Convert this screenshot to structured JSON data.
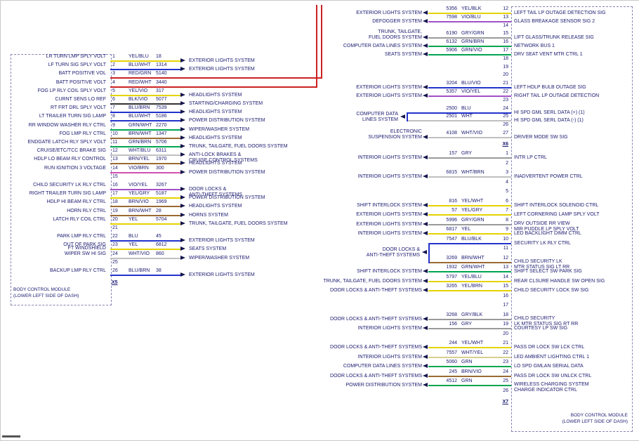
{
  "left_module": {
    "title_lines": [
      "BODY CONTROL MODULE",
      "(LOWER LEFT SIDE OF DASH)"
    ],
    "connector": "X5",
    "rows": [
      {
        "pin": "1",
        "label": [
          "LR TURN LMP SPLY VOLT"
        ],
        "code": "YEL/BLU",
        "circuit": "18",
        "dest": [
          "EXTERIOR LIGHTS SYSTEM"
        ],
        "wire": "#e4d300"
      },
      {
        "pin": "2",
        "label": [
          "LF TURN SIG SPLY VOLT"
        ],
        "code": "BLU/WHT",
        "circuit": "1314",
        "dest": [
          "EXTERIOR LIGHTS SYSTEM"
        ],
        "wire": "#2233cc"
      },
      {
        "pin": "3",
        "label": [
          "BATT POSITIVE VOL"
        ],
        "code": "RED/GRN",
        "circuit": "5140",
        "wire": "#cc2222",
        "route": "up"
      },
      {
        "pin": "4",
        "label": [
          "BATT POSITIVE VOLT"
        ],
        "code": "RED/WHT",
        "circuit": "3440",
        "wire": "#cc2222",
        "route": "up"
      },
      {
        "pin": "5",
        "label": [
          "FOG LP RLY COIL SPLY VOLT"
        ],
        "code": "YEL/VIO",
        "circuit": "317",
        "dest": [
          "HEADLIGHTS SYSTEM"
        ],
        "wire": "#e4d300"
      },
      {
        "pin": "6",
        "label": [
          "CURNT SENS LO REF"
        ],
        "code": "BLK/VIO",
        "circuit": "5077",
        "dest": [
          "STARTING/CHARGING SYSTEM"
        ],
        "wire": "#333333"
      },
      {
        "pin": "7",
        "label": [
          "RT FRT DRL SPLY VOLT"
        ],
        "code": "BLU/BRN",
        "circuit": "7539",
        "dest": [
          "HEADLIGHTS SYSTEM"
        ],
        "wire": "#2233cc"
      },
      {
        "pin": "8",
        "label": [
          "LT TRAILER TURN SIG LAMP"
        ],
        "code": "BLU/WHT",
        "circuit": "5186",
        "dest": [
          "POWER DISTRIBUTION SYSTEM"
        ],
        "wire": "#2233cc"
      },
      {
        "pin": "9",
        "label": [
          "RR WINDOW WASHER RLY CTRL"
        ],
        "code": "GRN/WHT",
        "circuit": "2270",
        "dest": [
          "WIPER/WASHER SYSTEM"
        ],
        "wire": "#00a550"
      },
      {
        "pin": "10",
        "label": [
          "FOG LMP RLY CTRL"
        ],
        "code": "BRN/WHT",
        "circuit": "1347",
        "dest": [
          "HEADLIGHTS SYSTEM"
        ],
        "wire": "#9a6a32"
      },
      {
        "pin": "11",
        "label": [
          "ENDGATE LATCH RLY SPLY VOLT"
        ],
        "code": "GRN/BRN",
        "circuit": "5706",
        "dest": [
          "TRUNK, TAILGATE, FUEL DOORS SYSTEM"
        ],
        "wire": "#00a550"
      },
      {
        "pin": "12",
        "label": [
          "CRUISE/ETC/TCC BRAKE SIG"
        ],
        "code": "WHT/BLU",
        "circuit": "6311",
        "dest": [
          "ANTI-LOCK BRAKES &",
          "CRUISE CONTROL SYSTEMS"
        ],
        "wire": "#c0c0c0"
      },
      {
        "pin": "13",
        "label": [
          "HDLP LO BEAM RLY CONTROL"
        ],
        "code": "BRN/YEL",
        "circuit": "1970",
        "dest": [
          "HEADLIGHTS SYSTEM"
        ],
        "wire": "#9a6a32"
      },
      {
        "pin": "14",
        "label": [
          "RUN IGNITION 3 VOLTAGE"
        ],
        "code": "VIO/BRN",
        "circuit": "300",
        "dest": [
          "POWER DISTRIBUTION SYSTEM"
        ],
        "wire": "#d24fb0"
      },
      {
        "pin": "15"
      },
      {
        "pin": "16",
        "label": [
          "CHILD SECURITY LK RLY CTRL"
        ],
        "code": "VIO/YEL",
        "circuit": "3267",
        "dest": [
          "DOOR LOCKS &",
          "ANTI-THEFT SYSTEMS"
        ],
        "wire": "#a44fc8"
      },
      {
        "pin": "17",
        "label": [
          "RIGHT TRAILER TURN SIG LAMP"
        ],
        "code": "YEL/GRY",
        "circuit": "5187",
        "dest": [
          "POWER DISTRIBUTION SYSTEM"
        ],
        "wire": "#e4d300"
      },
      {
        "pin": "18",
        "label": [
          "HDLP HI BEAM RLY CTRL"
        ],
        "code": "BRN/VIO",
        "circuit": "1969",
        "dest": [
          "HEADLIGHTS SYSTEM"
        ],
        "wire": "#9a6a32"
      },
      {
        "pin": "19",
        "label": [
          "HORN RLY CTRL"
        ],
        "code": "BRN/WHT",
        "circuit": "28",
        "dest": [
          "HORNS SYSTEM"
        ],
        "wire": "#9a6a32"
      },
      {
        "pin": "20",
        "label": [
          "LATCH RLY COIL CTRL"
        ],
        "code": "YEL",
        "circuit": "5704",
        "dest": [
          "TRUNK, TAILGATE, FUEL DOORS SYSTEM"
        ],
        "wire": "#e4d300"
      },
      {
        "pin": "21"
      },
      {
        "pin": "22",
        "label": [
          "PARK LMP RLY CTRL"
        ],
        "code": "BLU",
        "circuit": "45",
        "dest": [
          "EXTERIOR LIGHTS SYSTEM"
        ],
        "wire": "#2233cc"
      },
      {
        "pin": "23",
        "label": [
          "OUT OF PARK SIG"
        ],
        "code": "YEL",
        "circuit": "6812",
        "dest": [
          "SEATS SYSTEM"
        ],
        "wire": "#e4d300"
      },
      {
        "pin": "24",
        "label": [
          "FT WINDSHIELD",
          "WIPER SW HI SIG"
        ],
        "code": "WHT/VIO",
        "circuit": "860",
        "dest": [
          "WIPER/WASHER SYSTEM"
        ],
        "wire": "#c0c0c0"
      },
      {
        "pin": "25"
      },
      {
        "pin": "26",
        "label": [
          "BACKUP LMP RLY CTRL"
        ],
        "code": "BLU/BRN",
        "circuit": "38",
        "dest": [
          "EXTERIOR LIGHTS SYSTEM"
        ],
        "wire": "#2233cc"
      }
    ]
  },
  "right_module": {
    "title_lines": [
      "BODY CONTROL MODULE",
      "(LOWER LEFT SIDE OF DASH)"
    ],
    "groups": [
      {
        "connector": "X6",
        "rows": [
          {
            "pin": "12",
            "system": [
              "EXTERIOR LIGHTS SYSTEM"
            ],
            "circuit": "5356",
            "code": "YEL/BLK",
            "label": [
              "LEFT TAIL LP OUTAGE DETECTION SIG"
            ],
            "wire": "#e4d300"
          },
          {
            "pin": "13",
            "system": [
              "DEFOGGER SYSTEM"
            ],
            "circuit": "7598",
            "code": "VIO/BLU",
            "label": [
              "GLASS BREAKAGE SENSOR SIG 2"
            ],
            "wire": "#a44fc8"
          },
          {
            "pin": "14"
          },
          {
            "pin": "15",
            "system": [
              "TRUNK, TAILGATE,",
              "FUEL DOORS SYSTEM"
            ],
            "circuit": "6190",
            "code": "GRY/GRN",
            "label": [
              "LIFT GLASS/TRUNK RELEASE SIG"
            ],
            "wire": "#9a9a9a"
          },
          {
            "pin": "16",
            "system": [
              "COMPUTER DATA LINES SYSTEM"
            ],
            "circuit": "6132",
            "code": "GRN/BRN",
            "label": [
              "NETWORK BUS 1"
            ],
            "wire": "#00a550"
          },
          {
            "pin": "17",
            "system": [
              "SEATS SYSTEM"
            ],
            "circuit": "5906",
            "code": "GRN/VIO",
            "label": [
              "DRV SEAT VENT MTR CTRL 1"
            ],
            "wire": "#00a550"
          },
          {
            "pin": "18"
          },
          {
            "pin": "19"
          },
          {
            "pin": "20"
          },
          {
            "pin": "21",
            "system": [
              "EXTERIOR LIGHTS SYSTEM"
            ],
            "circuit": "3204",
            "code": "BLU/VIO",
            "label": [
              "LEFT HDLP BULB OUTAGE SIG"
            ],
            "wire": "#2233cc"
          },
          {
            "pin": "22",
            "system": [
              "EXTERIOR LIGHTS SYSTEM"
            ],
            "circuit": "5357",
            "code": "VIO/YEL",
            "label": [
              "RIGHT TAIL LP OUTAGE DETECTION"
            ],
            "wire": "#a44fc8"
          },
          {
            "pin": "23"
          },
          {
            "pin": "24",
            "circuit": "2500",
            "code": "BLU",
            "label": [
              "HI SPD GML SERL DATA (+) (1)"
            ],
            "wire": "#2233cc",
            "bracket": 0
          },
          {
            "pin": "25",
            "circuit": "2501",
            "code": "WHT",
            "label": [
              "HI SPD GML SERL DATA (-) (1)"
            ],
            "wire": "#c0c0c0",
            "bracket": 0
          },
          {
            "pin": "26"
          },
          {
            "pin": "27",
            "system": [
              "ELECTRONIC",
              "SUSPENSION SYSTEM"
            ],
            "circuit": "4108",
            "code": "WHT/VIO",
            "label": [
              "DRIVER MODE SW SIG"
            ],
            "wire": "#c0c0c0"
          }
        ]
      },
      {
        "connector": "X7",
        "rows": [
          {
            "pin": "1",
            "system": [
              "INTERIOR LIGHTS SYSTEM"
            ],
            "circuit": "157",
            "code": "GRY",
            "label": [
              "INTR LP CTRL"
            ],
            "wire": "#9a9a9a"
          },
          {
            "pin": "2"
          },
          {
            "pin": "3",
            "system": [
              "INTERIOR LIGHTS SYSTEM"
            ],
            "circuit": "6815",
            "code": "WHT/BRN",
            "label": [
              "INADVERTENT POWER CTRL"
            ],
            "wire": "#c0c0c0"
          },
          {
            "pin": "4"
          },
          {
            "pin": "5"
          },
          {
            "pin": "6",
            "system": [
              "SHIFT INTERLOCK SYSTEM"
            ],
            "circuit": "816",
            "code": "YEL/WHT",
            "label": [
              "SHIFT INTERLOCK SOLENOID CTRL"
            ],
            "wire": "#e4d300"
          },
          {
            "pin": "7",
            "system": [
              "EXTERIOR LIGHTS SYSTEM"
            ],
            "circuit": "57",
            "code": "YEL/GRY",
            "label": [
              "LEFT CORNERING LAMP SPLY VOLT"
            ],
            "wire": "#e4d300"
          },
          {
            "pin": "8",
            "system": [
              "EXTERIOR LIGHTS SYSTEM"
            ],
            "circuit": "5996",
            "code": "GRY/GRN",
            "label": [
              "DRV OUTSIDE RR VIEW",
              "MIR PUDDLE LP SPLY VOLT"
            ],
            "wire": "#9a9a9a"
          },
          {
            "pin": "9",
            "system": [
              "INTERIOR LIGHTS SYSTEM"
            ],
            "circuit": "6817",
            "code": "YEL",
            "label": [
              "LED BACKLIGHT DIMM CTRL"
            ],
            "wire": "#e4d300"
          },
          {
            "pin": "10",
            "circuit": "7547",
            "code": "BLU/BLK",
            "label": [
              "SECURITY LK RLY CTRL"
            ],
            "wire": "#2233cc",
            "bracket": 1
          },
          {
            "pin": "11"
          },
          {
            "pin": "12",
            "circuit": "3269",
            "code": "BRN/WHT",
            "label": [
              "CHILD SECURITY LK",
              "MTR STATUS SIG LT RR"
            ],
            "wire": "#9a6a32",
            "bracket": 1
          },
          {
            "pin": "13",
            "system": [
              "SHIFT INTERLOCK SYSTEM"
            ],
            "circuit": "1932",
            "code": "GRN/WHT",
            "label": [
              "SHIFT SELECT SW PARK SIG"
            ],
            "wire": "#00a550"
          },
          {
            "pin": "14",
            "system": [
              "TRUNK, TAILGATE, FUEL DOORS SYSTEM"
            ],
            "circuit": "5797",
            "code": "YEL/BLU",
            "label": [
              "REAR CLSURE HANDLE SW OPEN SIG"
            ],
            "wire": "#e4d300"
          },
          {
            "pin": "15",
            "system": [
              "DOOR LOCKS & ANTI-THEFT SYSTEMS"
            ],
            "circuit": "3265",
            "code": "YEL/BRN",
            "label": [
              "CHILD SECURITY LOCK SW SIG"
            ],
            "wire": "#e4d300"
          },
          {
            "pin": "16"
          },
          {
            "pin": "17"
          },
          {
            "pin": "18",
            "system": [
              "DOOR LOCKS & ANTI-THEFT SYSTEMS"
            ],
            "circuit": "3268",
            "code": "GRY/BLK",
            "label": [
              "CHILD SECURITY",
              "LK MTR STATUS SIG RT RR"
            ],
            "wire": "#9a9a9a"
          },
          {
            "pin": "19",
            "system": [
              "INTERIOR LIGHTS SYSTEM"
            ],
            "circuit": "156",
            "code": "GRY",
            "label": [
              "COURTESY LP SW SIG"
            ],
            "wire": "#9a9a9a"
          },
          {
            "pin": "20"
          },
          {
            "pin": "21",
            "system": [
              "DOOR LOCKS & ANTI-THEFT SYSTEMS"
            ],
            "circuit": "244",
            "code": "YEL/WHT",
            "label": [
              "PASS DR LOCK SW LCK CTRL"
            ],
            "wire": "#e4d300"
          },
          {
            "pin": "22",
            "system": [
              "INTERIOR LIGHTS SYSTEM"
            ],
            "circuit": "7557",
            "code": "WHT/YEL",
            "label": [
              "LED AMBIENT LIGHTING CTRL 1"
            ],
            "wire": "#d6cf8e"
          },
          {
            "pin": "23",
            "system": [
              "COMPUTER DATA LINES SYSTEM"
            ],
            "circuit": "5060",
            "code": "GRN",
            "label": [
              "LO SPD GMLAN SERIAL DATA"
            ],
            "wire": "#00a550"
          },
          {
            "pin": "24",
            "system": [
              "DOOR LOCKS & ANTI-THEFT SYSTEMS"
            ],
            "circuit": "245",
            "code": "BRN/VIO",
            "label": [
              "PASS DR LOCK SW UNLCK CTRL"
            ],
            "wire": "#9a6a32"
          },
          {
            "pin": "25",
            "system": [
              "POWER DISTRIBUTION SYSTEM"
            ],
            "circuit": "4512",
            "code": "GRN",
            "label": [
              "WIRELESS CHARGING SYSTEM",
              "CHARGE INDICATOR CTRL"
            ],
            "wire": "#00a550"
          },
          {
            "pin": "26"
          }
        ]
      }
    ],
    "brackets": [
      {
        "label": [
          "COMPUTER DATA",
          "LINES SYSTEM"
        ]
      },
      {
        "label": [
          "DOOR LOCKS &",
          "ANTI-THEFT SYSTEMS"
        ]
      }
    ]
  }
}
